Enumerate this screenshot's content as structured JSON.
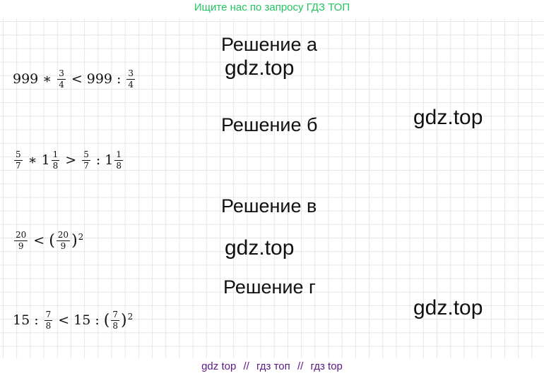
{
  "banner_top": "Ищите нас по запросу ГДЗ ТОП",
  "banner_bottom": [
    "gdz top",
    "//",
    "гдз топ",
    "//",
    "гдз top"
  ],
  "watermark": "gdz.top",
  "sections": [
    {
      "heading": "Решение а",
      "expr": {
        "a": "999",
        "op1": "∗",
        "f1n": "3",
        "f1d": "4",
        "cmp": "<",
        "b": "999",
        "op2": ":",
        "f2n": "3",
        "f2d": "4"
      }
    },
    {
      "heading": "Решение б",
      "expr": {
        "f1n": "5",
        "f1d": "7",
        "op1": "∗",
        "w1": "1",
        "m1n": "1",
        "m1d": "8",
        "cmp": ">",
        "f2n": "5",
        "f2d": "7",
        "op2": ":",
        "w2": "1",
        "m2n": "1",
        "m2d": "8"
      }
    },
    {
      "heading": "Решение в",
      "expr": {
        "f1n": "20",
        "f1d": "9",
        "cmp": "<",
        "lp": "(",
        "f2n": "20",
        "f2d": "9",
        "rp": ")",
        "pow": "2"
      }
    },
    {
      "heading": "Решение г",
      "expr": {
        "a": "15",
        "op1": ":",
        "f1n": "7",
        "f1d": "8",
        "cmp": "<",
        "b": "15",
        "op2": ":",
        "lp": "(",
        "f2n": "7",
        "f2d": "8",
        "rp": ")",
        "pow": "2"
      }
    }
  ]
}
